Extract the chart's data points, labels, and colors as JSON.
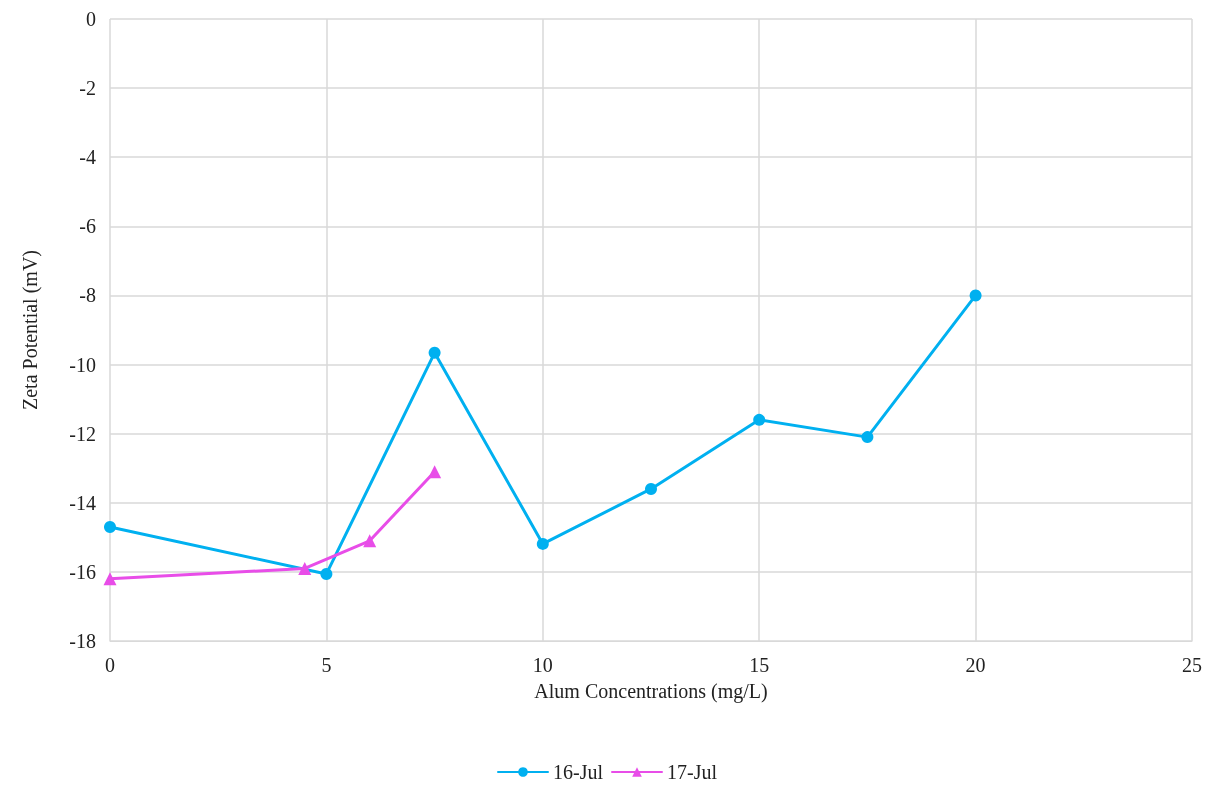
{
  "chart_data": {
    "type": "line",
    "xlabel": "Alum Concentrations (mg/L)",
    "ylabel": "Zeta Potential (mV)",
    "xlim": [
      0,
      25
    ],
    "xticks": [
      0,
      5,
      10,
      15,
      20,
      25
    ],
    "ylim": [
      -18,
      0
    ],
    "yticks": [
      -18,
      -16,
      -14,
      -12,
      -10,
      -8,
      -6,
      -4,
      -2,
      0
    ],
    "grid": true,
    "legend": "bottom",
    "series": [
      {
        "name": "16-Jul",
        "color": "#00b0f0",
        "marker": "circle",
        "x": [
          0,
          5,
          7.5,
          10,
          12.5,
          15,
          17.5,
          20
        ],
        "values": [
          -14.7,
          -16.06,
          -9.66,
          -15.19,
          -13.6,
          -11.6,
          -12.1,
          -8.0
        ]
      },
      {
        "name": "17-Jul",
        "color": "#e84de8",
        "marker": "triangle",
        "x": [
          0,
          4.5,
          6,
          7.5
        ],
        "values": [
          -16.2,
          -15.9,
          -15.1,
          -13.1
        ]
      }
    ]
  }
}
